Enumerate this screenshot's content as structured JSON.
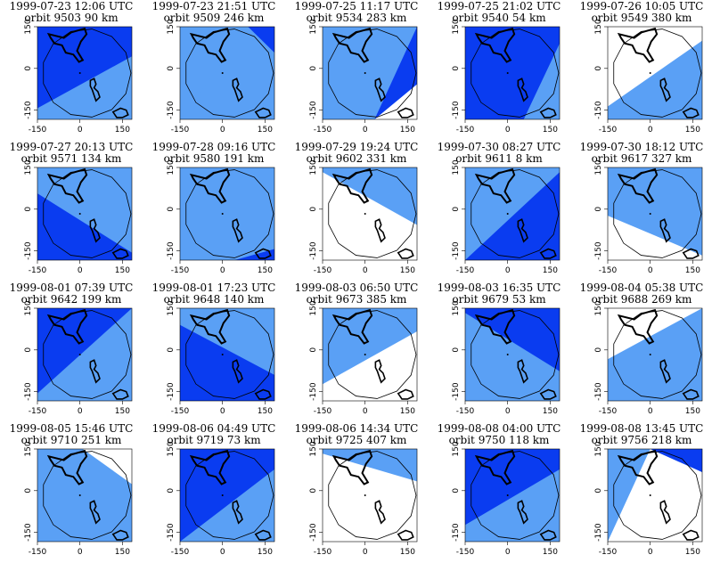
{
  "colors": {
    "dark": "#0a3cf0",
    "light": "#5aa0f5",
    "white": "#ffffff",
    "line": "#000000"
  },
  "axis": {
    "x_ticks": [
      "-150",
      "0",
      "150"
    ],
    "y_ticks": [
      "-150",
      "0",
      "150"
    ]
  },
  "panels": [
    {
      "date": "1999-07-23",
      "time": "12:06 UTC",
      "orbit": "orbit 9503",
      "dist": "90 km",
      "fill": {
        "top": "dark",
        "bottom": "light",
        "line": [
          0.0,
          0.88,
          1.0,
          0.32
        ]
      }
    },
    {
      "date": "1999-07-23",
      "time": "21:51 UTC",
      "orbit": "orbit 9509",
      "dist": "246 km",
      "fill": {
        "top": "light",
        "bottom": "light",
        "corner": "dark",
        "line": [
          0.72,
          0.0,
          1.0,
          0.28
        ]
      }
    },
    {
      "date": "1999-07-25",
      "time": "11:17 UTC",
      "orbit": "orbit 9534",
      "dist": "283 km",
      "fill": {
        "top": "light",
        "bottom": "white",
        "corner": "dark",
        "line": [
          0.55,
          1.0,
          1.0,
          0.62
        ]
      }
    },
    {
      "date": "1999-07-25",
      "time": "21:02 UTC",
      "orbit": "orbit 9540",
      "dist": "54 km",
      "fill": {
        "top": "dark",
        "bottom": "light",
        "line": [
          0.62,
          1.0,
          1.0,
          0.18
        ]
      }
    },
    {
      "date": "1999-07-26",
      "time": "10:05 UTC",
      "orbit": "orbit 9549",
      "dist": "380 km",
      "fill": {
        "top": "white",
        "bottom": "light",
        "line": [
          0.0,
          0.86,
          1.0,
          0.15
        ]
      }
    },
    {
      "date": "1999-07-27",
      "time": "20:13 UTC",
      "orbit": "orbit 9571",
      "dist": "134 km",
      "fill": {
        "top": "light",
        "bottom": "dark",
        "line": [
          0.0,
          0.28,
          1.0,
          0.92
        ]
      }
    },
    {
      "date": "1999-07-28",
      "time": "09:16 UTC",
      "orbit": "orbit 9580",
      "dist": "191 km",
      "fill": {
        "top": "light",
        "bottom": "dark",
        "line": [
          0.58,
          1.0,
          1.0,
          0.88
        ]
      }
    },
    {
      "date": "1999-07-29",
      "time": "19:24 UTC",
      "orbit": "orbit 9602",
      "dist": "331 km",
      "fill": {
        "top": "light",
        "bottom": "white",
        "line": [
          0.0,
          0.05,
          1.0,
          0.62
        ]
      }
    },
    {
      "date": "1999-07-30",
      "time": "08:27 UTC",
      "orbit": "orbit 9611",
      "dist": "8 km",
      "fill": {
        "top": "light",
        "bottom": "dark",
        "line": [
          0.0,
          1.0,
          1.0,
          0.05
        ]
      }
    },
    {
      "date": "1999-07-30",
      "time": "18:12 UTC",
      "orbit": "orbit 9617",
      "dist": "327 km",
      "fill": {
        "top": "light",
        "bottom": "white",
        "line": [
          0.0,
          0.52,
          1.0,
          0.95
        ]
      }
    },
    {
      "date": "1999-08-01",
      "time": "07:39 UTC",
      "orbit": "orbit 9642",
      "dist": "199 km",
      "fill": {
        "top": "dark",
        "bottom": "light",
        "line": [
          0.0,
          0.92,
          1.0,
          0.0
        ]
      }
    },
    {
      "date": "1999-08-01",
      "time": "17:23 UTC",
      "orbit": "orbit 9648",
      "dist": "140 km",
      "fill": {
        "top": "light",
        "bottom": "dark",
        "line": [
          0.0,
          0.18,
          1.0,
          0.72
        ]
      }
    },
    {
      "date": "1999-08-03",
      "time": "06:50 UTC",
      "orbit": "orbit 9673",
      "dist": "385 km",
      "fill": {
        "top": "light",
        "bottom": "white",
        "line": [
          0.0,
          0.82,
          1.0,
          0.25
        ]
      }
    },
    {
      "date": "1999-08-03",
      "time": "16:35 UTC",
      "orbit": "orbit 9679",
      "dist": "53 km",
      "fill": {
        "top": "dark",
        "bottom": "light",
        "line": [
          0.0,
          0.05,
          1.0,
          0.68
        ]
      }
    },
    {
      "date": "1999-08-04",
      "time": "05:38 UTC",
      "orbit": "orbit 9688",
      "dist": "269 km",
      "fill": {
        "top": "white",
        "bottom": "light",
        "line": [
          0.0,
          0.55,
          1.0,
          0.0
        ]
      }
    },
    {
      "date": "1999-08-05",
      "time": "15:46 UTC",
      "orbit": "orbit 9710",
      "dist": "251 km",
      "fill": {
        "top": "light",
        "bottom": "light",
        "corner": "white",
        "line": [
          0.48,
          0.0,
          1.0,
          0.38
        ]
      }
    },
    {
      "date": "1999-08-06",
      "time": "04:49 UTC",
      "orbit": "orbit 9719",
      "dist": "73 km",
      "fill": {
        "top": "dark",
        "bottom": "light",
        "line": [
          0.0,
          1.0,
          1.0,
          0.22
        ]
      }
    },
    {
      "date": "1999-08-06",
      "time": "14:34 UTC",
      "orbit": "orbit 9725",
      "dist": "407 km",
      "fill": {
        "top": "light",
        "bottom": "white",
        "line": [
          0.0,
          0.05,
          1.0,
          0.35
        ]
      }
    },
    {
      "date": "1999-08-08",
      "time": "04:00 UTC",
      "orbit": "orbit 9750",
      "dist": "118 km",
      "fill": {
        "top": "dark",
        "bottom": "light",
        "line": [
          0.0,
          0.82,
          1.0,
          0.22
        ]
      }
    },
    {
      "date": "1999-08-08",
      "time": "13:45 UTC",
      "orbit": "orbit 9756",
      "dist": "218 km",
      "fill": {
        "top": "light",
        "bottom": "white",
        "corner": "dark",
        "line": [
          0.45,
          0.0,
          1.0,
          0.25
        ]
      }
    }
  ]
}
